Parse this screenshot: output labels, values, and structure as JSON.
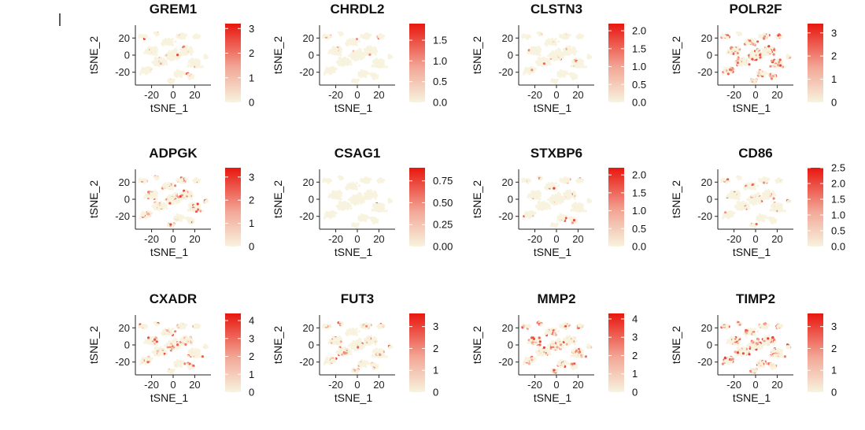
{
  "figure": {
    "xlabel": "tSNE_1",
    "ylabel": "tSNE_2",
    "x_ticks": [
      "-20",
      "0",
      "20"
    ],
    "y_ticks": [
      "20",
      "0",
      "-20"
    ],
    "colors": {
      "low": "#f7f3de",
      "high": "#e8170f",
      "frame": "#222222"
    }
  },
  "chart_data": [
    {
      "type": "scatter",
      "title": "GREM1",
      "xlabel": "tSNE_1",
      "ylabel": "tSNE_2",
      "color_scale": {
        "min": 0,
        "max": 3.2,
        "ticks": [
          "3",
          "2",
          "1",
          "0"
        ]
      },
      "expression": "low"
    },
    {
      "type": "scatter",
      "title": "CHRDL2",
      "xlabel": "tSNE_1",
      "ylabel": "tSNE_2",
      "color_scale": {
        "min": 0,
        "max": 1.9,
        "ticks": [
          "1.5",
          "1.0",
          "0.5",
          "0.0"
        ]
      },
      "expression": "sparse"
    },
    {
      "type": "scatter",
      "title": "CLSTN3",
      "xlabel": "tSNE_1",
      "ylabel": "tSNE_2",
      "color_scale": {
        "min": 0,
        "max": 2.2,
        "ticks": [
          "2.0",
          "1.5",
          "1.0",
          "0.5",
          "0.0"
        ]
      },
      "expression": "low"
    },
    {
      "type": "scatter",
      "title": "POLR2F",
      "xlabel": "tSNE_1",
      "ylabel": "tSNE_2",
      "color_scale": {
        "min": 0,
        "max": 3.4,
        "ticks": [
          "3",
          "2",
          "1",
          "0"
        ]
      },
      "expression": "high"
    },
    {
      "type": "scatter",
      "title": "ADPGK",
      "xlabel": "tSNE_1",
      "ylabel": "tSNE_2",
      "color_scale": {
        "min": 0,
        "max": 3.4,
        "ticks": [
          "3",
          "2",
          "1",
          "0"
        ]
      },
      "expression": "medium"
    },
    {
      "type": "scatter",
      "title": "CSAG1",
      "xlabel": "tSNE_1",
      "ylabel": "tSNE_2",
      "color_scale": {
        "min": 0,
        "max": 0.9,
        "ticks": [
          "0.75",
          "0.50",
          "0.25",
          "0.00"
        ]
      },
      "expression": "sparse"
    },
    {
      "type": "scatter",
      "title": "STXBP6",
      "xlabel": "tSNE_1",
      "ylabel": "tSNE_2",
      "color_scale": {
        "min": 0,
        "max": 2.2,
        "ticks": [
          "2.0",
          "1.5",
          "1.0",
          "0.5",
          "0.0"
        ]
      },
      "expression": "low"
    },
    {
      "type": "scatter",
      "title": "CD86",
      "xlabel": "tSNE_1",
      "ylabel": "tSNE_2",
      "color_scale": {
        "min": 0,
        "max": 2.5,
        "ticks": [
          "2.5",
          "2.0",
          "1.5",
          "1.0",
          "0.5",
          "0.0"
        ]
      },
      "expression": "low"
    },
    {
      "type": "scatter",
      "title": "CXADR",
      "xlabel": "tSNE_1",
      "ylabel": "tSNE_2",
      "color_scale": {
        "min": 0,
        "max": 4.4,
        "ticks": [
          "4",
          "3",
          "2",
          "1",
          "0"
        ]
      },
      "expression": "medium"
    },
    {
      "type": "scatter",
      "title": "FUT3",
      "xlabel": "tSNE_1",
      "ylabel": "tSNE_2",
      "color_scale": {
        "min": 0,
        "max": 3.6,
        "ticks": [
          "3",
          "2",
          "1",
          "0"
        ]
      },
      "expression": "medium"
    },
    {
      "type": "scatter",
      "title": "MMP2",
      "xlabel": "tSNE_1",
      "ylabel": "tSNE_2",
      "color_scale": {
        "min": 0,
        "max": 4.3,
        "ticks": [
          "4",
          "3",
          "2",
          "1",
          "0"
        ]
      },
      "expression": "high"
    },
    {
      "type": "scatter",
      "title": "TIMP2",
      "xlabel": "tSNE_1",
      "ylabel": "tSNE_2",
      "color_scale": {
        "min": 0,
        "max": 3.6,
        "ticks": [
          "3",
          "2",
          "1",
          "0"
        ]
      },
      "expression": "high"
    }
  ]
}
